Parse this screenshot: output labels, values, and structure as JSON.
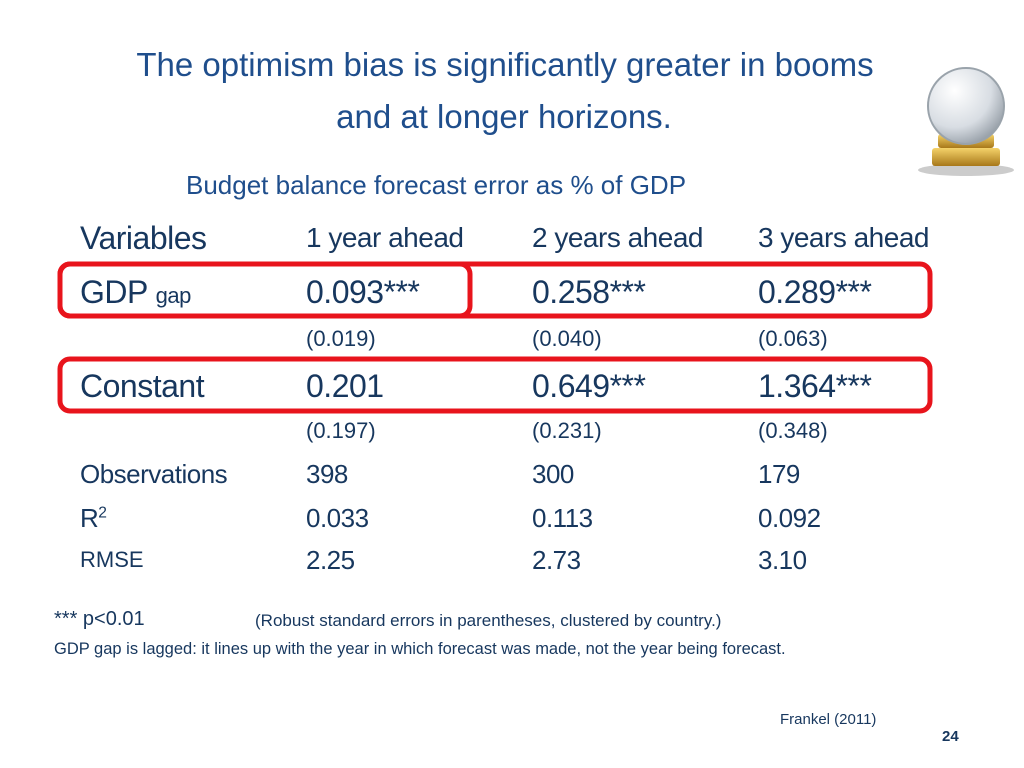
{
  "header": {
    "title_lines": [
      "The optimism bias  is significantly greater in booms",
      "and at longer horizons."
    ],
    "subtitle": "Budget balance forecast error as % of GDP"
  },
  "table": {
    "columns": [
      "Variables",
      "1 year ahead",
      "2 years ahead",
      "3 years ahead"
    ],
    "rows": [
      {
        "label": "GDP",
        "label_note": "gap",
        "cells": [
          "0.093***",
          "0.258***",
          "0.289***"
        ]
      },
      {
        "cells": [
          "(0.019)",
          "(0.040)",
          "(0.063)"
        ]
      },
      {
        "label": "Constant",
        "cells": [
          "0.201",
          "0.649***",
          "1.364***"
        ]
      },
      {
        "cells": [
          "(0.197)",
          "(0.231)",
          "(0.348)"
        ]
      },
      {
        "label": "Observations",
        "cells": [
          "398",
          "300",
          "179"
        ]
      },
      {
        "label": "R",
        "label_sup": "2",
        "cells": [
          "0.033",
          "0.113",
          "0.092"
        ]
      },
      {
        "label": "RMSE",
        "cells": [
          "2.25",
          "2.73",
          "3.10"
        ]
      }
    ]
  },
  "footnotes": {
    "significance": "*** p<0.01",
    "errors": "(Robust standard errors in parentheses, clustered by country.)",
    "lag": "GDP gap is lagged: it lines up with the year in which forecast was made, not the year being forecast."
  },
  "source": "Frankel (2011)",
  "page_number": "24"
}
